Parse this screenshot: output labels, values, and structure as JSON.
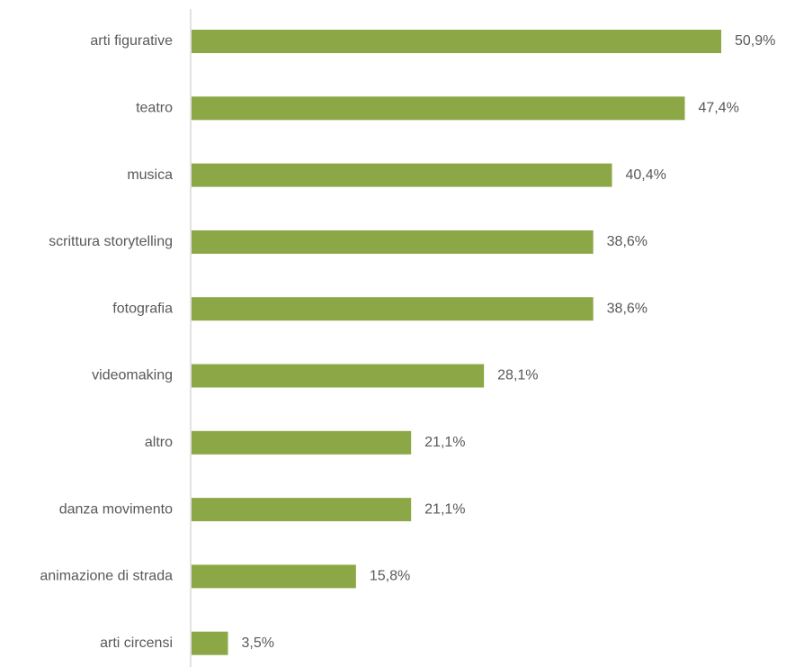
{
  "chart_data": {
    "type": "bar",
    "orientation": "horizontal",
    "categories": [
      "arti figurative",
      "teatro",
      "musica",
      "scrittura storytelling",
      "fotografia",
      "videomaking",
      "altro",
      "danza movimento",
      "animazione di strada",
      "arti circensi"
    ],
    "values": [
      50.9,
      47.4,
      40.4,
      38.6,
      38.6,
      28.1,
      21.1,
      21.1,
      15.8,
      3.5
    ],
    "value_labels": [
      "50,9%",
      "47,4%",
      "40,4%",
      "38,6%",
      "38,6%",
      "28,1%",
      "21,1%",
      "21,1%",
      "15,8%",
      "3,5%"
    ],
    "unit": "%",
    "xlim": [
      0,
      50.9
    ],
    "grid": false,
    "legend": "none",
    "bar_color": "#8CA846",
    "axis_color": "#D9D9D9",
    "label_color": "#595959"
  }
}
